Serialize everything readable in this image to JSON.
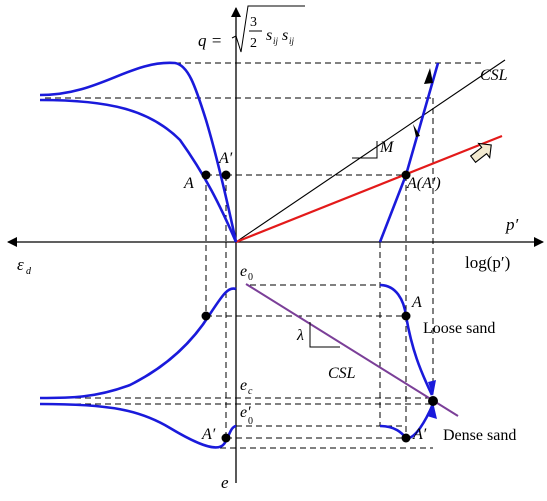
{
  "labels": {
    "q_axis": "q =",
    "q_three": "3",
    "q_two": "2",
    "q_s1": "s",
    "q_s1_sub": "ij",
    "q_s2": "s",
    "q_s2_sub": "ij",
    "p_axis": "p′",
    "logp_axis": "log(p′)",
    "eps_d": "ε",
    "eps_d_sub": "d",
    "e_axis": "e",
    "csl_top": "CSL",
    "csl_bottom": "CSL",
    "M": "M",
    "lambda": "λ",
    "A_left": "A",
    "A_prime_top": "A′",
    "A_Aprime": "A(A′)",
    "A_loose": "A",
    "A_prime_bottom_left": "A′",
    "A_prime_bottom_right": "A′",
    "e0": "e",
    "e0_sub": "0",
    "ec": "e",
    "ec_sub": "c",
    "e0_prime": "e′",
    "e0_prime_sub": "0",
    "loose_sand": "Loose sand",
    "dense_sand": "Dense sand"
  },
  "colors": {
    "curve": "#1a1adb",
    "red_line": "#e31a1a",
    "csl_purple": "#7b3f98",
    "axis": "#000000",
    "hollow_arrow_fill": "#f2ead0"
  }
}
